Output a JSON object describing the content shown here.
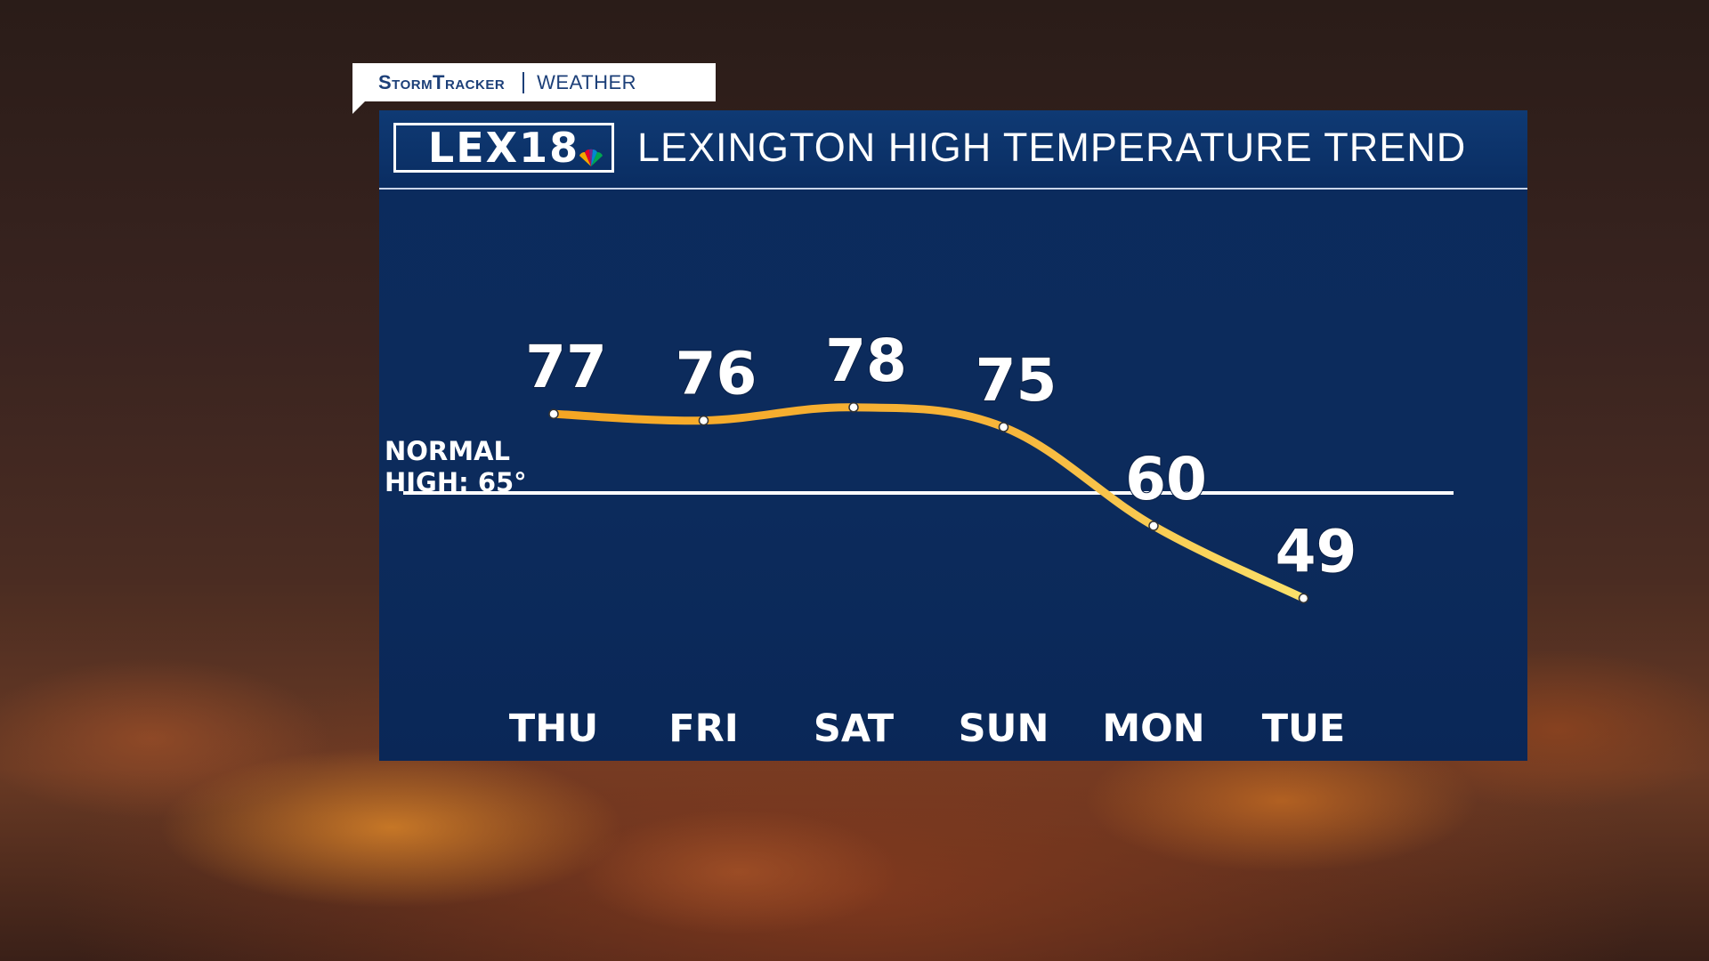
{
  "tag": {
    "brand": "StormTracker",
    "sub": "WEATHER"
  },
  "header": {
    "logo": "LEX18",
    "title": "LEXINGTON HIGH TEMPERATURE TREND"
  },
  "normal": {
    "line1": "NORMAL",
    "line2": "HIGH: 65°",
    "value": 65
  },
  "colors": {
    "panel": "#0c2b5c",
    "trend_line": "#f5b335",
    "text": "#ffffff"
  },
  "icons": {
    "logo": "nbc-peacock-icon"
  },
  "chart_data": {
    "type": "line",
    "title": "LEXINGTON HIGH TEMPERATURE TREND",
    "categories": [
      "THU",
      "FRI",
      "SAT",
      "SUN",
      "MON",
      "TUE"
    ],
    "values": [
      77,
      76,
      78,
      75,
      60,
      49
    ],
    "value_labels": [
      "77",
      "76",
      "78",
      "75",
      "60",
      "49"
    ],
    "reference_line": {
      "label": "NORMAL HIGH: 65°",
      "value": 65
    },
    "grid": false
  }
}
